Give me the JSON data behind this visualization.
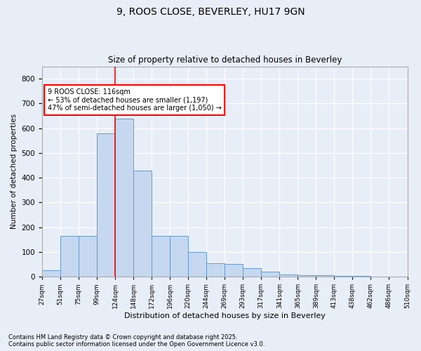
{
  "title1": "9, ROOS CLOSE, BEVERLEY, HU17 9GN",
  "title2": "Size of property relative to detached houses in Beverley",
  "xlabel": "Distribution of detached houses by size in Beverley",
  "ylabel": "Number of detached properties",
  "bar_values": [
    25,
    165,
    165,
    580,
    640,
    430,
    165,
    165,
    100,
    55,
    50,
    35,
    20,
    10,
    5,
    5,
    3,
    2,
    1,
    1
  ],
  "bin_labels": [
    "27sqm",
    "51sqm",
    "75sqm",
    "99sqm",
    "124sqm",
    "148sqm",
    "172sqm",
    "196sqm",
    "220sqm",
    "244sqm",
    "269sqm",
    "293sqm",
    "317sqm",
    "341sqm",
    "365sqm",
    "389sqm",
    "413sqm",
    "438sqm",
    "462sqm",
    "486sqm",
    "510sqm"
  ],
  "bar_color": "#c5d8f0",
  "bar_edge_color": "#6699cc",
  "vline_color": "red",
  "annotation_text": "9 ROOS CLOSE: 116sqm\n← 53% of detached houses are smaller (1,197)\n47% of semi-detached houses are larger (1,050) →",
  "ylim": [
    0,
    850
  ],
  "yticks": [
    0,
    100,
    200,
    300,
    400,
    500,
    600,
    700,
    800
  ],
  "footnote1": "Contains HM Land Registry data © Crown copyright and database right 2025.",
  "footnote2": "Contains public sector information licensed under the Open Government Licence v3.0.",
  "bg_color": "#e8eef8",
  "plot_bg_color": "#e8eef8"
}
